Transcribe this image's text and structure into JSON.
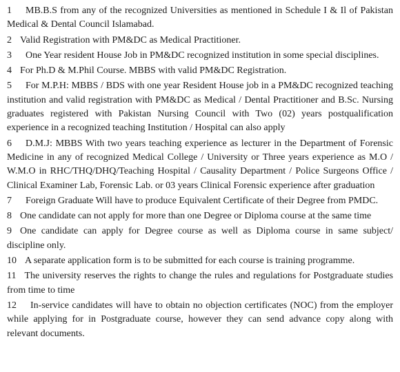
{
  "items": [
    {
      "num": "1",
      "gap": "gap-wide",
      "text": "MB.B.S from any of the recognized Universities as mentioned in Schedule I & Il of Pakistan Medical & Dental Council Islamabad."
    },
    {
      "num": "2",
      "gap": "gap-med",
      "text": "Valid Registration with PM&DC as Medical Practitioner."
    },
    {
      "num": "3",
      "gap": "gap-wide",
      "text": "One Year resident House Job in PM&DC recognized institution in some special disciplines."
    },
    {
      "num": "4",
      "gap": "gap-med",
      "text": "For Ph.D & M.Phil Course. MBBS with valid PM&DC Registration."
    },
    {
      "num": "5",
      "gap": "gap-wide",
      "text": "For M.P.H: MBBS / BDS with one year Resident House job in a PM&DC recognized teaching institution and valid registration with PM&DC as Medical / Dental Practitioner and B.Sc. Nursing graduates registered with Pakistan Nursing Council with Two (02) years postqualification experience in a recognized teaching Institution / Hospital can also apply"
    },
    {
      "num": "6",
      "gap": "gap-wide",
      "text": "D.M.J: MBBS With two years teaching experience as lecturer in the Department of Forensic Medicine in any of recognized Medical College / University or Three years experience as M.O / W.M.O in RHC/THQ/DHQ/Teaching Hospital / Causality Department / Police Surgeons Office / Clinical Examiner Lab, Forensic Lab. or 03 years Clinical Forensic experience after graduation"
    },
    {
      "num": "7",
      "gap": "gap-wide",
      "text": "Foreign Graduate Will have to produce Equivalent Certificate of their Degree from PMDC."
    },
    {
      "num": "8",
      "gap": "gap-med",
      "text": "One candidate can not apply for more than one Degree or Diploma course at the same time"
    },
    {
      "num": "9",
      "gap": "gap-med",
      "text": "One candidate can apply for Degree course as well as Diploma course in same subject/ discipline only."
    },
    {
      "num": "10",
      "gap": "gap-med",
      "text": "A separate application form is to be submitted for each course is training programme."
    },
    {
      "num": "11",
      "gap": "gap-med",
      "text": "The university reserves the rights to change the rules and regulations for Postgraduate studies from time to time"
    },
    {
      "num": "12",
      "gap": "gap-wide",
      "text": "In-service candidates will have to obtain no objection certificates (NOC) from the employer while applying for in Postgraduate course, however they can send advance copy along with relevant documents."
    }
  ]
}
